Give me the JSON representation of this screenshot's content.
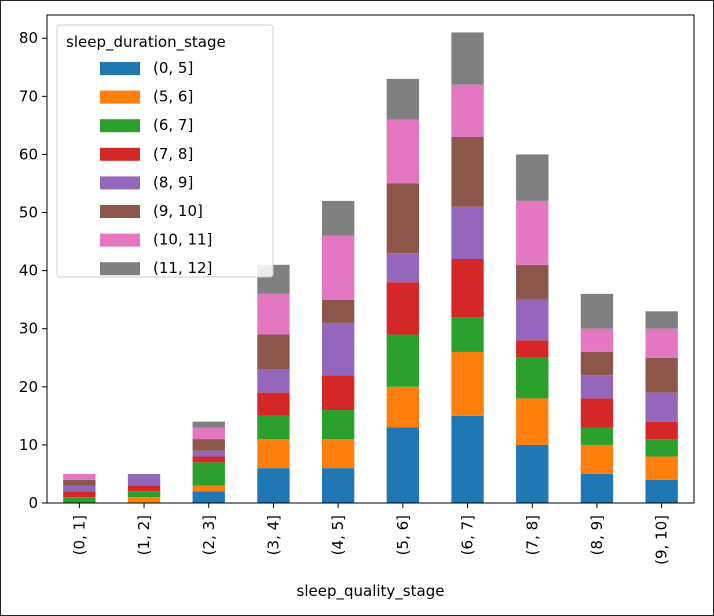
{
  "chart_data": {
    "type": "bar",
    "stacked": true,
    "title": "",
    "xlabel": "sleep_quality_stage",
    "ylabel": "",
    "ylim": [
      0,
      84
    ],
    "yticks": [
      0,
      10,
      20,
      30,
      40,
      50,
      60,
      70,
      80
    ],
    "categories": [
      "(0, 1]",
      "(1, 2]",
      "(2, 3]",
      "(3, 4]",
      "(4, 5]",
      "(5, 6]",
      "(6, 7]",
      "(7, 8]",
      "(8, 9]",
      "(9, 10]"
    ],
    "legend_title": "sleep_duration_stage",
    "legend_position": "top-left",
    "series": [
      {
        "name": "(0, 5]",
        "color": "#1f77b4",
        "values": [
          0,
          0,
          2,
          6,
          6,
          13,
          15,
          10,
          5,
          4
        ]
      },
      {
        "name": "(5, 6]",
        "color": "#ff7f0e",
        "values": [
          0,
          1,
          1,
          5,
          5,
          7,
          11,
          8,
          5,
          4
        ]
      },
      {
        "name": "(6, 7]",
        "color": "#2ca02c",
        "values": [
          1,
          1,
          4,
          4,
          5,
          9,
          6,
          7,
          3,
          3
        ]
      },
      {
        "name": "(7, 8]",
        "color": "#d62728",
        "values": [
          1,
          1,
          1,
          4,
          6,
          9,
          10,
          3,
          5,
          3
        ]
      },
      {
        "name": "(8, 9]",
        "color": "#9467bd",
        "values": [
          1,
          2,
          1,
          4,
          9,
          5,
          9,
          7,
          4,
          5
        ]
      },
      {
        "name": "(9, 10]",
        "color": "#8c564b",
        "values": [
          1,
          0,
          2,
          6,
          4,
          12,
          12,
          6,
          4,
          6
        ]
      },
      {
        "name": "(10, 11]",
        "color": "#e377c2",
        "values": [
          1,
          0,
          2,
          7,
          11,
          11,
          9,
          11,
          4,
          5
        ]
      },
      {
        "name": "(11, 12]",
        "color": "#7f7f7f",
        "values": [
          0,
          0,
          1,
          5,
          6,
          7,
          9,
          8,
          6,
          3
        ]
      }
    ]
  }
}
